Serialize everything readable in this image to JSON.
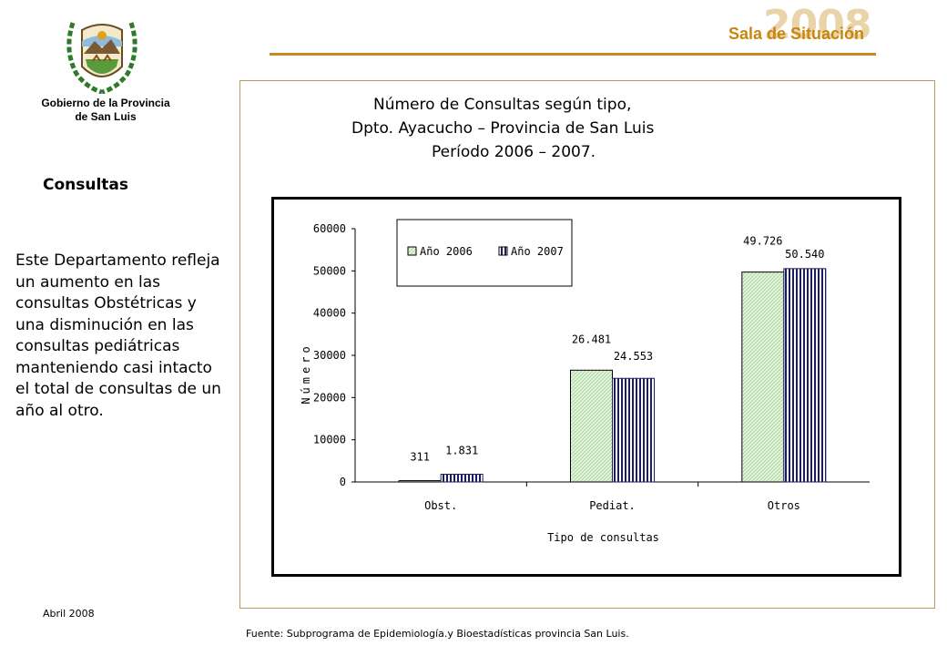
{
  "header": {
    "brand_year": "2008",
    "brand_title": "Sala de Situación"
  },
  "sidebar": {
    "government_line1": "Gobierno de la Provincia",
    "government_line2": "de San Luis",
    "section_title": "Consultas",
    "section_text": "Este Departamento refleja un aumento en las consultas Obstétricas y una disminución en las consultas pediátricas manteniendo casi intacto el total de consultas de un año al otro."
  },
  "footer": {
    "date": "Abril 2008",
    "source": "Fuente: Subprograma de Epidemiología.y Bioestadísticas provincia San Luis."
  },
  "colors": {
    "brand_accent": "#c8860e",
    "rule": "#c88a1c",
    "series_2006": "#d9f0d4",
    "series_2007": "#1a1f5c"
  },
  "chart_data": {
    "type": "bar",
    "title_lines": [
      "Número de Consultas según tipo,",
      "Dpto. Ayacucho – Provincia de San Luis",
      "Período 2006 – 2007."
    ],
    "categories": [
      "Obst.",
      "Pediat.",
      "Otros"
    ],
    "series": [
      {
        "name": "Año 2006",
        "values": [
          311,
          26481,
          49726
        ],
        "labels": [
          "311",
          "26.481",
          "49.726"
        ]
      },
      {
        "name": "Año 2007",
        "values": [
          1831,
          24553,
          50540
        ],
        "labels": [
          "1.831",
          "24.553",
          "50.540"
        ]
      }
    ],
    "xlabel": "Tipo de consultas",
    "ylabel": "Número",
    "ylim": [
      0,
      60000
    ],
    "yticks": [
      0,
      10000,
      20000,
      30000,
      40000,
      50000,
      60000
    ],
    "legend": "top-left",
    "grid": false
  }
}
